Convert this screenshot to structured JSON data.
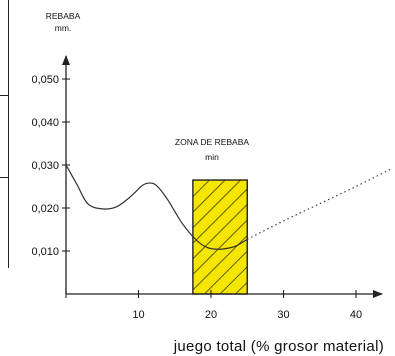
{
  "chart_data": {
    "type": "line",
    "ylabel_line1": "REBABA",
    "ylabel_line2": "mm.",
    "xlabel": "juego total (% grosor material)",
    "x_ticks": [
      "10",
      "20",
      "30",
      "40"
    ],
    "y_ticks": [
      "0,010",
      "0,020",
      "0,030",
      "0,040",
      "0,050"
    ],
    "xlim": [
      0,
      45
    ],
    "ylim": [
      0,
      0.055
    ],
    "zone": {
      "label": "ZONA DE REBABA",
      "sublabel": "min",
      "x_range": [
        17.5,
        25
      ],
      "y_top": 0.0265,
      "fill": "#f5e600",
      "hatch": "#3a3a00"
    },
    "series": [
      {
        "style": "solid",
        "x": [
          0,
          1.5,
          3,
          5,
          7,
          9,
          10.5,
          11.5,
          12.5,
          14,
          16,
          18,
          19.5,
          21,
          22.5,
          23.5,
          25
        ],
        "y": [
          0.03,
          0.0255,
          0.021,
          0.0198,
          0.0203,
          0.0228,
          0.0252,
          0.0258,
          0.0252,
          0.022,
          0.0165,
          0.0125,
          0.0108,
          0.0104,
          0.0107,
          0.0112,
          0.0127
        ]
      },
      {
        "style": "dotted",
        "x": [
          25,
          30,
          35,
          40,
          45
        ],
        "y": [
          0.0127,
          0.017,
          0.021,
          0.025,
          0.0292
        ]
      }
    ]
  }
}
